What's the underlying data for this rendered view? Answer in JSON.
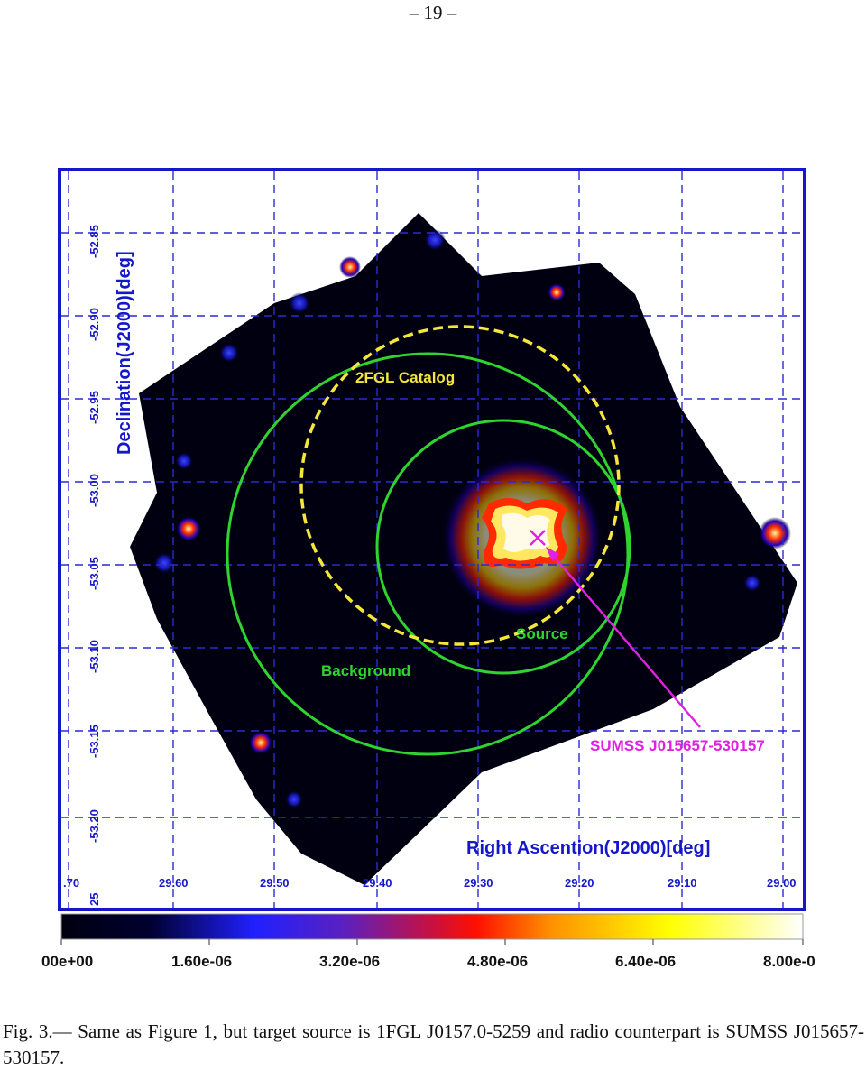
{
  "page": {
    "number": "– 19 –"
  },
  "figure": {
    "xlabel": "Right Ascention(J2000)[deg]",
    "ylabel": "Declination(J2000)[deg]",
    "x_ticks": [
      ".70",
      "29.60",
      "29.50",
      "29.40",
      "29.30",
      "29.20",
      "29.10",
      "29.00"
    ],
    "y_ticks": [
      "-52.85",
      "-52.90",
      "-52.95",
      "-53.00",
      "-53.05",
      "-53.10",
      "-53.15",
      "-53.20",
      "25"
    ],
    "labels": {
      "catalog": "2FGL Catalog",
      "source": "Source",
      "background": "Background",
      "counterpart": "SUMSS J015657-530157"
    },
    "colors": {
      "frame": "#1518c8",
      "grid": "#2a2ad0",
      "catalog_circle": "#f5e63a",
      "region_circles": "#2fd42f",
      "counterpart": "#e021e0",
      "map_background": "#000010"
    },
    "colorbar": {
      "ticks": [
        "00e+00",
        "1.60e-06",
        "3.20e-06",
        "4.80e-06",
        "6.40e-06",
        "8.00e-0"
      ]
    }
  },
  "caption": {
    "label": "Fig. 3.—",
    "text": "Same as Figure 1, but target source is 1FGL J0157.0-5259 and radio counterpart is SUMSS J015657-530157."
  }
}
